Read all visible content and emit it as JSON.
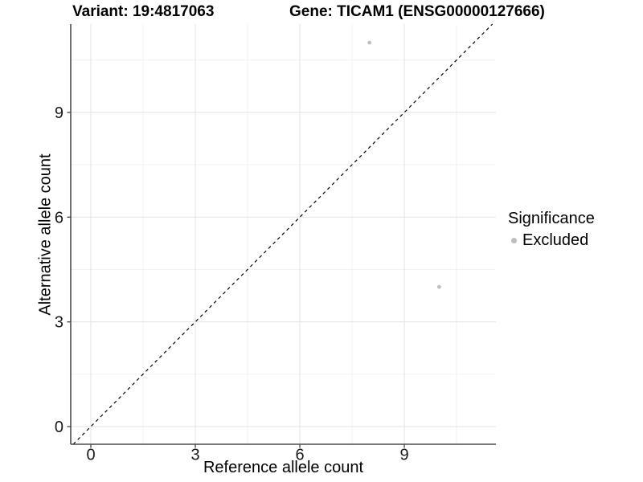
{
  "titles": {
    "left": "Variant: 19:4817063",
    "right": "Gene: TICAM1 (ENSG00000127666)"
  },
  "chart_data": {
    "type": "scatter",
    "xlabel": "Reference allele count",
    "ylabel": "Alternative allele count",
    "xlim": [
      -0.577,
      11.63
    ],
    "ylim": [
      -0.506,
      11.53
    ],
    "x_ticks": [
      0,
      3,
      6,
      9
    ],
    "y_ticks": [
      0,
      3,
      6,
      9
    ],
    "x_minor_ticks": [
      1.5,
      4.5,
      7.5,
      10.5
    ],
    "y_minor_ticks": [
      1.5,
      4.5,
      7.5,
      10.5
    ],
    "grid": true,
    "diagonal": {
      "style": "dashed",
      "from": -0.506,
      "to": 11.53,
      "color": "#000000"
    },
    "series": [
      {
        "name": "Excluded",
        "color": "#bebebe",
        "points": [
          {
            "x": 8,
            "y": 11
          },
          {
            "x": 10,
            "y": 4
          }
        ]
      }
    ],
    "legend": {
      "title": "Significance",
      "position": "right",
      "items": [
        {
          "label": "Excluded",
          "color": "#bebebe"
        }
      ]
    },
    "colors": {
      "background": "#ffffff",
      "axis_line": "#4d4d4d",
      "grid_major": "#e3e3e3",
      "grid_minor": "#f0f0f0",
      "tick_label": "#1a1a1a",
      "point": "#bebebe"
    }
  }
}
